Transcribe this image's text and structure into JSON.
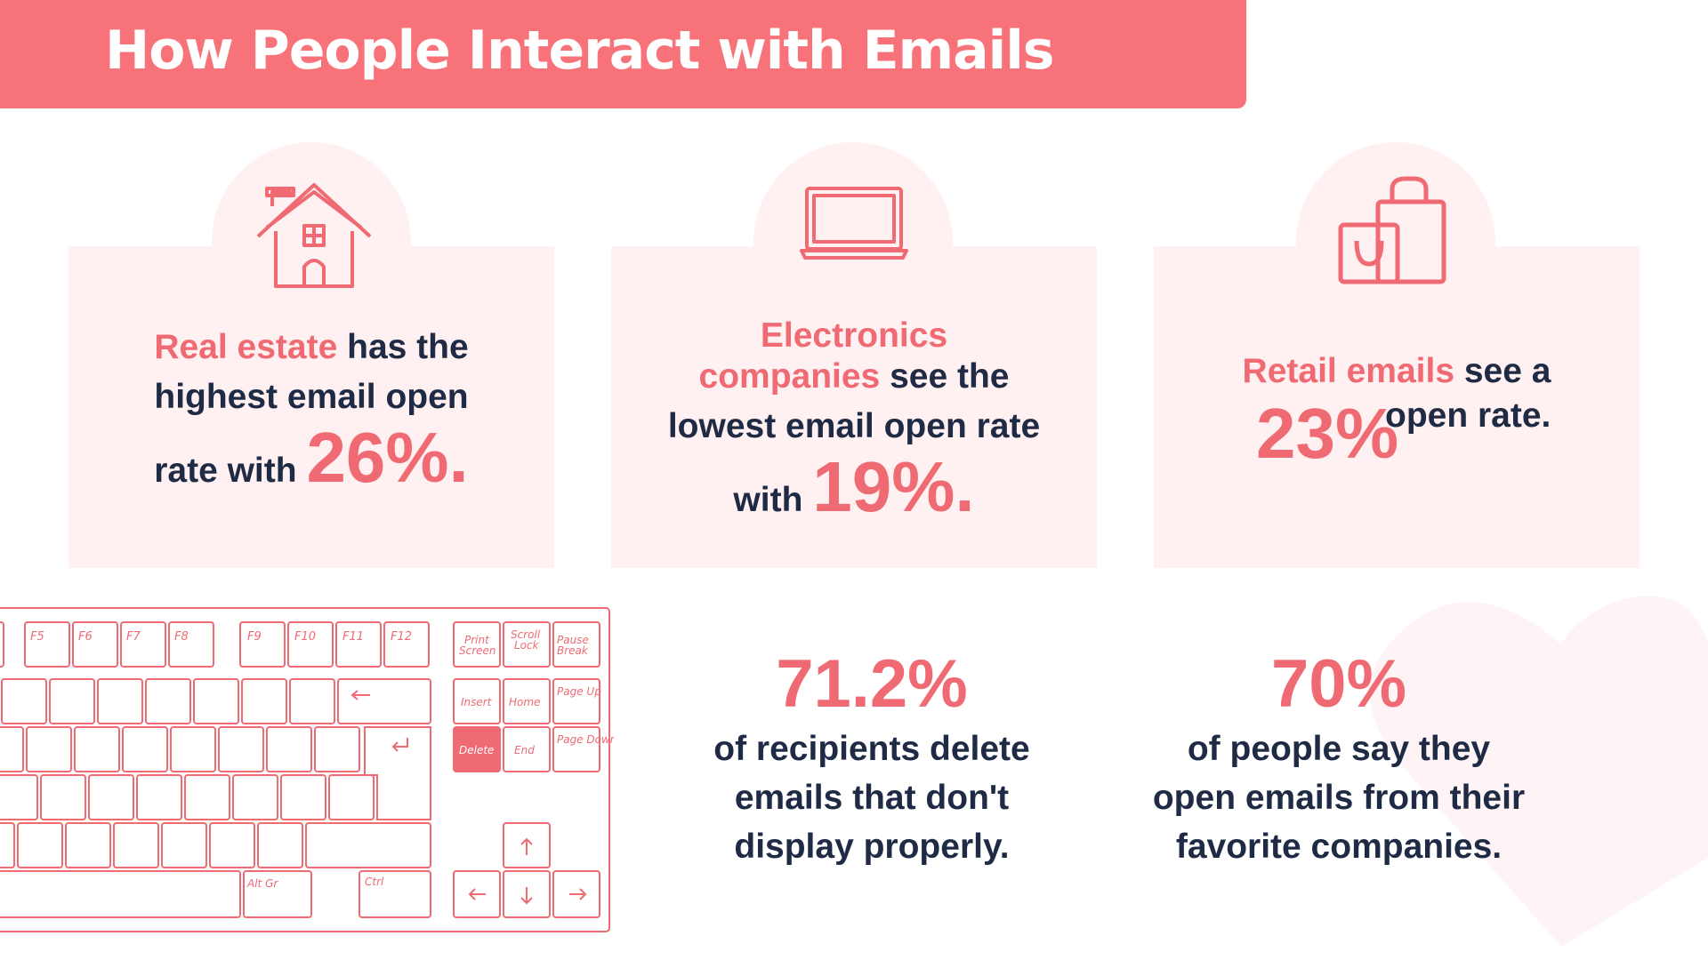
{
  "title": "How People Interact with Emails",
  "colors": {
    "banner": "#f87379",
    "accent": "#ef6a72",
    "text": "#1f2a44",
    "card": "#fff0f1"
  },
  "cards": [
    {
      "icon": "house-icon",
      "highlight": "Real estate",
      "line1_rest": " has the",
      "line2": "highest email open",
      "line3": "rate with",
      "value": "26%."
    },
    {
      "icon": "laptop-icon",
      "highlight1": "Electronics",
      "highlight2": "companies",
      "line2_rest": " see the",
      "line3": "lowest email open rate",
      "line4": "with",
      "value": "19%."
    },
    {
      "icon": "shopping-bag-icon",
      "highlight": "Retail emails",
      "line1_rest": " see a",
      "value": "23%",
      "line2_rest": "open rate."
    }
  ],
  "stats": [
    {
      "value": "71.2%",
      "line1": "of recipients delete",
      "line2": "emails that don't",
      "highlight": "display properly."
    },
    {
      "value": "70%",
      "line1": "of people say they",
      "line2": "open emails from their",
      "highlight": "favorite companies."
    }
  ],
  "keyboard": {
    "fkeys_a": [
      "F5",
      "F6",
      "F7",
      "F8"
    ],
    "fkeys_b": [
      "F9",
      "F10",
      "F11",
      "F12"
    ],
    "nav_top": [
      [
        "Print",
        "Screen"
      ],
      [
        "Scroll",
        "Lock"
      ],
      [
        "Pause",
        "Break"
      ]
    ],
    "nav_mid": [
      "Insert",
      "Home",
      "Page Up"
    ],
    "nav_low": [
      "Delete",
      "End",
      "Page Down"
    ],
    "alt_gr": "Alt Gr",
    "ctrl": "Ctrl"
  }
}
